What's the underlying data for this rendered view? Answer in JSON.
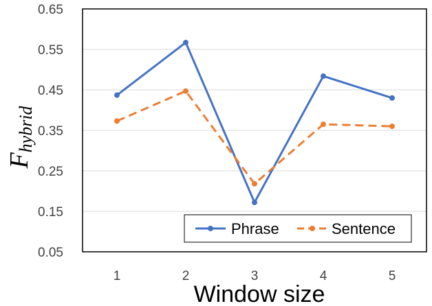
{
  "chart_data": {
    "type": "line",
    "title": "",
    "xlabel": "Window size",
    "ylabel": {
      "main": "F",
      "sub": "hybrid"
    },
    "x": [
      1,
      2,
      3,
      4,
      5
    ],
    "x_tick_labels": [
      "1",
      "2",
      "3",
      "4",
      "5"
    ],
    "ylim": [
      0.05,
      0.65
    ],
    "y_ticks": [
      0.05,
      0.15,
      0.25,
      0.35,
      0.45,
      0.55,
      0.65
    ],
    "y_tick_labels": [
      "0.05",
      "0.15",
      "0.25",
      "0.35",
      "0.45",
      "0.55",
      "0.65"
    ],
    "grid": "horizontal",
    "legend_position": "bottom-right",
    "series": [
      {
        "name": "Phrase",
        "values": [
          0.437,
          0.567,
          0.172,
          0.484,
          0.43
        ],
        "color": "#4472C4",
        "dash": "solid"
      },
      {
        "name": "Sentence",
        "values": [
          0.373,
          0.447,
          0.218,
          0.365,
          0.36
        ],
        "color": "#ED7D31",
        "dash": "dashed"
      }
    ]
  }
}
